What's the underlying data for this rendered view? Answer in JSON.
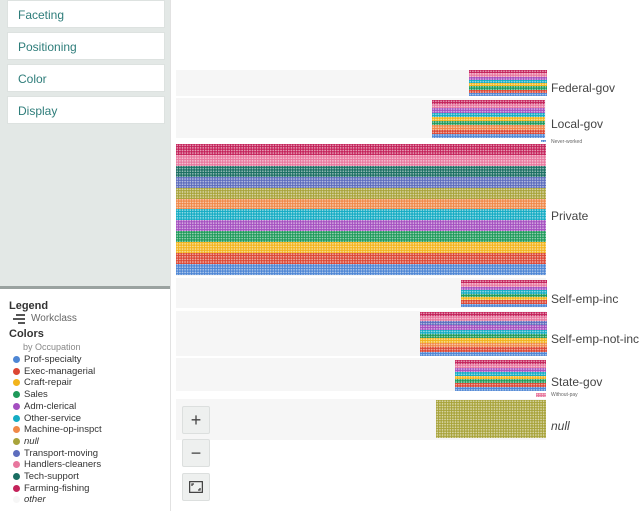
{
  "sidebar": {
    "panels": [
      {
        "label": "Faceting"
      },
      {
        "label": "Positioning"
      },
      {
        "label": "Color"
      },
      {
        "label": "Display"
      }
    ]
  },
  "legend": {
    "title": "Legend",
    "facet_label": "Workclass",
    "colors_title": "Colors",
    "colors_by": "by Occupation",
    "items": [
      {
        "label": "Prof-specialty",
        "color": "#4e86d4"
      },
      {
        "label": "Exec-managerial",
        "color": "#dc4633"
      },
      {
        "label": "Craft-repair",
        "color": "#f2b41c"
      },
      {
        "label": "Sales",
        "color": "#1e9a5a"
      },
      {
        "label": "Adm-clerical",
        "color": "#a44fc0"
      },
      {
        "label": "Other-service",
        "color": "#14acc4"
      },
      {
        "label": "Machine-op-inspct",
        "color": "#f08848"
      },
      {
        "label": "null",
        "color": "#a8a33a"
      },
      {
        "label": "Transport-moving",
        "color": "#5d6dbd"
      },
      {
        "label": "Handlers-cleaners",
        "color": "#e8779e"
      },
      {
        "label": "Tech-support",
        "color": "#1a6e62"
      },
      {
        "label": "Farming-fishing",
        "color": "#c4225a"
      },
      {
        "label": "other",
        "color": "#f6f6f6"
      }
    ]
  },
  "facets": [
    {
      "label": "Federal-gov"
    },
    {
      "label": "Local-gov"
    },
    {
      "label": "Never-worked"
    },
    {
      "label": "Private"
    },
    {
      "label": "Self-emp-inc"
    },
    {
      "label": "Self-emp-not-inc"
    },
    {
      "label": "State-gov"
    },
    {
      "label": "Without-pay"
    },
    {
      "label": "null"
    }
  ],
  "controls": {
    "zoom_in": "+",
    "zoom_out": "−"
  }
}
